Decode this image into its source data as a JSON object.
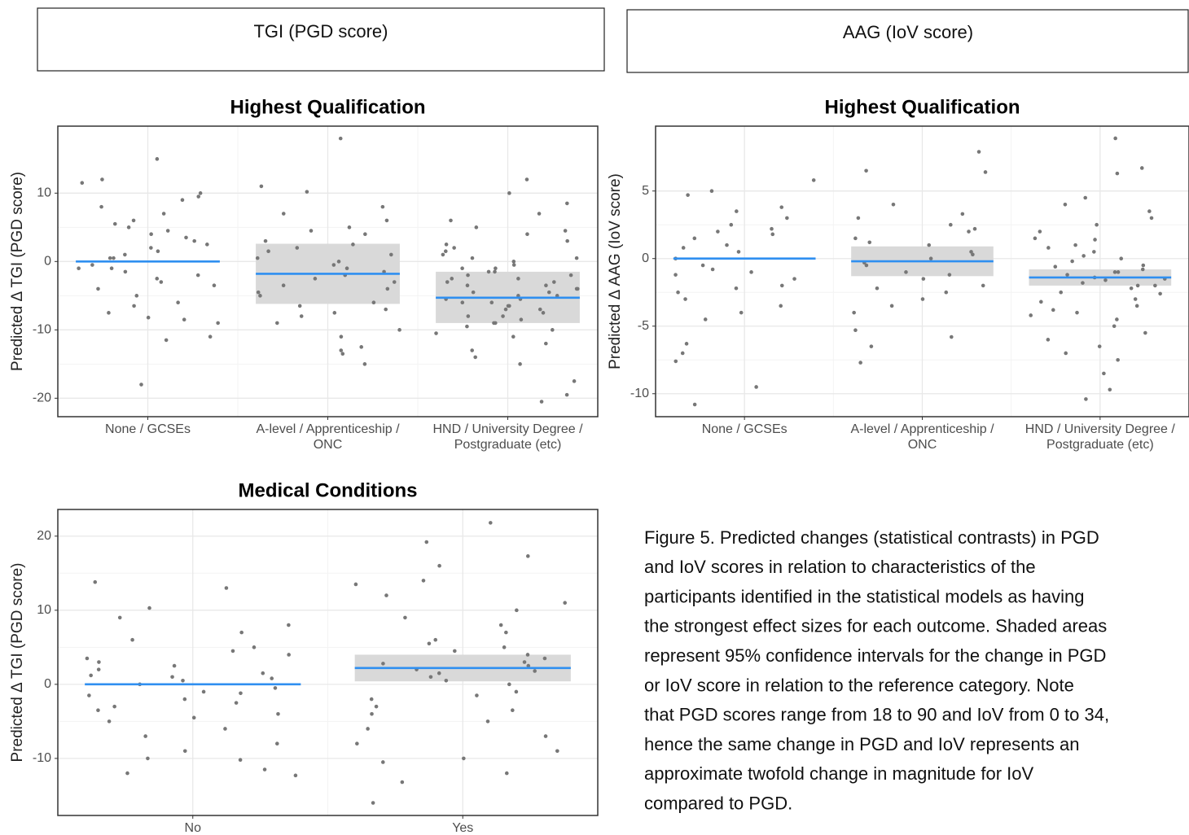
{
  "headers": [
    "TGI (PGD score)",
    "AAG (IoV score)"
  ],
  "chart_data": [
    {
      "type": "strip",
      "title": "Highest Qualification",
      "y_label": "Predicted Δ TGI (PGD score)",
      "categories": [
        [
          "None / GCSEs"
        ],
        [
          "A-level / Apprenticeship /",
          "ONC"
        ],
        [
          "HND / University Degree /",
          "Postgraduate (etc)"
        ]
      ],
      "point_color": "#777777",
      "line_color": "#2f8ff0",
      "band_color": "#d9d9d9",
      "ylim": [
        -22.7,
        19.8
      ],
      "yticks": [
        -20,
        -10,
        0,
        10
      ],
      "grid": true,
      "estimates": [
        {
          "value": 0
        },
        {
          "value": -1.8,
          "lower": -6.2,
          "upper": 2.6
        },
        {
          "value": -5.3,
          "lower": -9,
          "upper": -1.5
        }
      ],
      "points": [
        [
          12,
          9,
          15,
          -18,
          5.5,
          3,
          -8.5,
          -8.2,
          4,
          2,
          -1,
          -3,
          7,
          6,
          -2,
          1,
          -5,
          0.5,
          -9,
          -6,
          10,
          9.5,
          11.5,
          -11.5,
          -11,
          -7.5,
          3.5,
          -4,
          2.5,
          8,
          -1.5,
          -2.5,
          5,
          -6.5,
          1.5,
          -0.5,
          4.5,
          -3.5,
          -1,
          0.5
        ],
        [
          18,
          11,
          10.2,
          8,
          7,
          6,
          5,
          4,
          3,
          2.5,
          1,
          0,
          -0.5,
          -1,
          -2,
          -3,
          -4,
          -5,
          -6,
          -7,
          -8,
          -9,
          -10,
          -11,
          -12.5,
          -13.5,
          -15,
          -13,
          -6.5,
          -3.5,
          1.5,
          4.5,
          -1.5,
          -2.5,
          2,
          0.5,
          -4.5,
          -7.5
        ],
        [
          12,
          10,
          8.5,
          7,
          6,
          5,
          4.5,
          4,
          3,
          2.5,
          2,
          1.5,
          1,
          0.5,
          0,
          -0.5,
          -1,
          -1.5,
          -2,
          -2.5,
          -3,
          -3.5,
          -4,
          -4.5,
          -5,
          -5.5,
          -6,
          -6.5,
          -7,
          -7.5,
          -8,
          -8.5,
          -9,
          -9.5,
          -10,
          -11,
          -12,
          -13,
          -14,
          -15,
          -17.5,
          -19.5,
          -20.5,
          -3,
          -4,
          -5,
          -6,
          -7,
          -2,
          -1,
          -4.5,
          -5.5,
          -6.5,
          -3.5,
          -8,
          -9,
          -10.5,
          -1.5,
          0.5,
          -2.5
        ]
      ]
    },
    {
      "type": "strip",
      "title": "Highest Qualification",
      "y_label": "Predicted Δ AAG (IoV score)",
      "categories": [
        [
          "None / GCSEs"
        ],
        [
          "A-level / Apprenticeship /",
          "ONC"
        ],
        [
          "HND / University Degree /",
          "Postgraduate (etc)"
        ]
      ],
      "point_color": "#777777",
      "line_color": "#2f8ff0",
      "band_color": "#d9d9d9",
      "ylim": [
        -11.7,
        9.8
      ],
      "yticks": [
        -10,
        -5,
        0,
        5
      ],
      "grid": true,
      "estimates": [
        {
          "value": 0
        },
        {
          "value": -0.2,
          "lower": -1.3,
          "upper": 0.9
        },
        {
          "value": -1.4,
          "lower": -2,
          "upper": -0.8
        }
      ],
      "points": [
        [
          5,
          5.8,
          4.7,
          3.5,
          3,
          2.5,
          2,
          1.5,
          1,
          0.5,
          0,
          -0.5,
          -1,
          -1.5,
          -2,
          -2.5,
          -3,
          -3.5,
          -4,
          -4.5,
          -6.3,
          -7,
          -7.6,
          -9.5,
          -10.8,
          3.8,
          1.8,
          -0.8,
          0.8,
          2.2,
          -2.2,
          -1.2
        ],
        [
          7.9,
          6.5,
          6.4,
          4,
          3,
          2.5,
          2,
          1.5,
          1,
          0.5,
          0,
          -0.5,
          -1,
          -1.5,
          -2,
          -2.5,
          -3,
          -3.5,
          -4,
          -5.3,
          -5.8,
          -6.5,
          -7.7,
          0.3,
          -0.3,
          1.2,
          -1.2,
          2.2,
          -2.2,
          3.3
        ],
        [
          8.9,
          6.7,
          6.3,
          4.5,
          4,
          3.5,
          3,
          2.5,
          2,
          1.5,
          1,
          0.5,
          0,
          -0.5,
          -1,
          -1.5,
          -2,
          -2.5,
          -3,
          -3.5,
          -4,
          -4.5,
          -5,
          -5.5,
          -6,
          -6.5,
          -7,
          -7.5,
          -8.5,
          -9.7,
          -10.4,
          -1,
          -1.4,
          -1.8,
          -2.2,
          -0.6,
          -0.2,
          0.2,
          -2.6,
          -3.2,
          -1.2,
          -1.6,
          -2,
          -0.8,
          -3.8,
          0.8,
          1.4,
          -4.2
        ]
      ]
    },
    {
      "type": "strip",
      "title": "Medical Conditions",
      "y_label": "Predicted Δ TGI (PGD score)",
      "categories": [
        [
          "No"
        ],
        [
          "Yes"
        ]
      ],
      "point_color": "#777777",
      "line_color": "#2f8ff0",
      "band_color": "#d9d9d9",
      "ylim": [
        -17.7,
        23.6
      ],
      "yticks": [
        -10,
        0,
        10,
        20
      ],
      "grid": true,
      "estimates": [
        {
          "value": 0
        },
        {
          "value": 2.2,
          "lower": 0.4,
          "upper": 4.0
        }
      ],
      "points": [
        [
          13.8,
          13,
          10.3,
          9,
          8,
          7,
          6,
          5,
          4,
          3,
          2.5,
          2,
          1.5,
          1,
          0.5,
          0,
          -0.5,
          -1,
          -1.5,
          -2,
          -2.5,
          -3,
          -4,
          -5,
          -6,
          -7,
          -8,
          -9,
          -10,
          -10.2,
          -11.5,
          -12,
          -12.3,
          3.5,
          -3.5,
          4.5,
          -4.5,
          1.2,
          -1.2,
          0.8
        ],
        [
          21.8,
          19.2,
          17.3,
          16,
          14,
          13.5,
          12,
          11,
          10,
          9,
          8,
          7,
          6,
          5,
          4,
          3.5,
          3,
          2.5,
          2,
          1.5,
          1,
          0.5,
          0,
          -1,
          -2,
          -3,
          -4,
          -5,
          -6,
          -7,
          -8,
          -9,
          -10,
          -10.5,
          -12,
          -13.2,
          -16,
          2.8,
          1.8,
          4.5,
          5.5,
          -1.5,
          -3.5
        ]
      ]
    }
  ],
  "caption": [
    "Figure 5. Predicted changes (statistical contrasts) in PGD",
    "and IoV scores in relation to characteristics of the",
    "participants identified in the statistical models as having",
    "the strongest effect sizes for each outcome. Shaded areas",
    "represent 95% confidence intervals for the change in PGD",
    "or IoV score in relation to the reference category. Note",
    "that PGD scores range from 18 to 90 and IoV from 0 to 34,",
    "hence the same change in PGD and IoV represents an",
    "approximate twofold change in magnitude for IoV",
    "compared to PGD."
  ]
}
